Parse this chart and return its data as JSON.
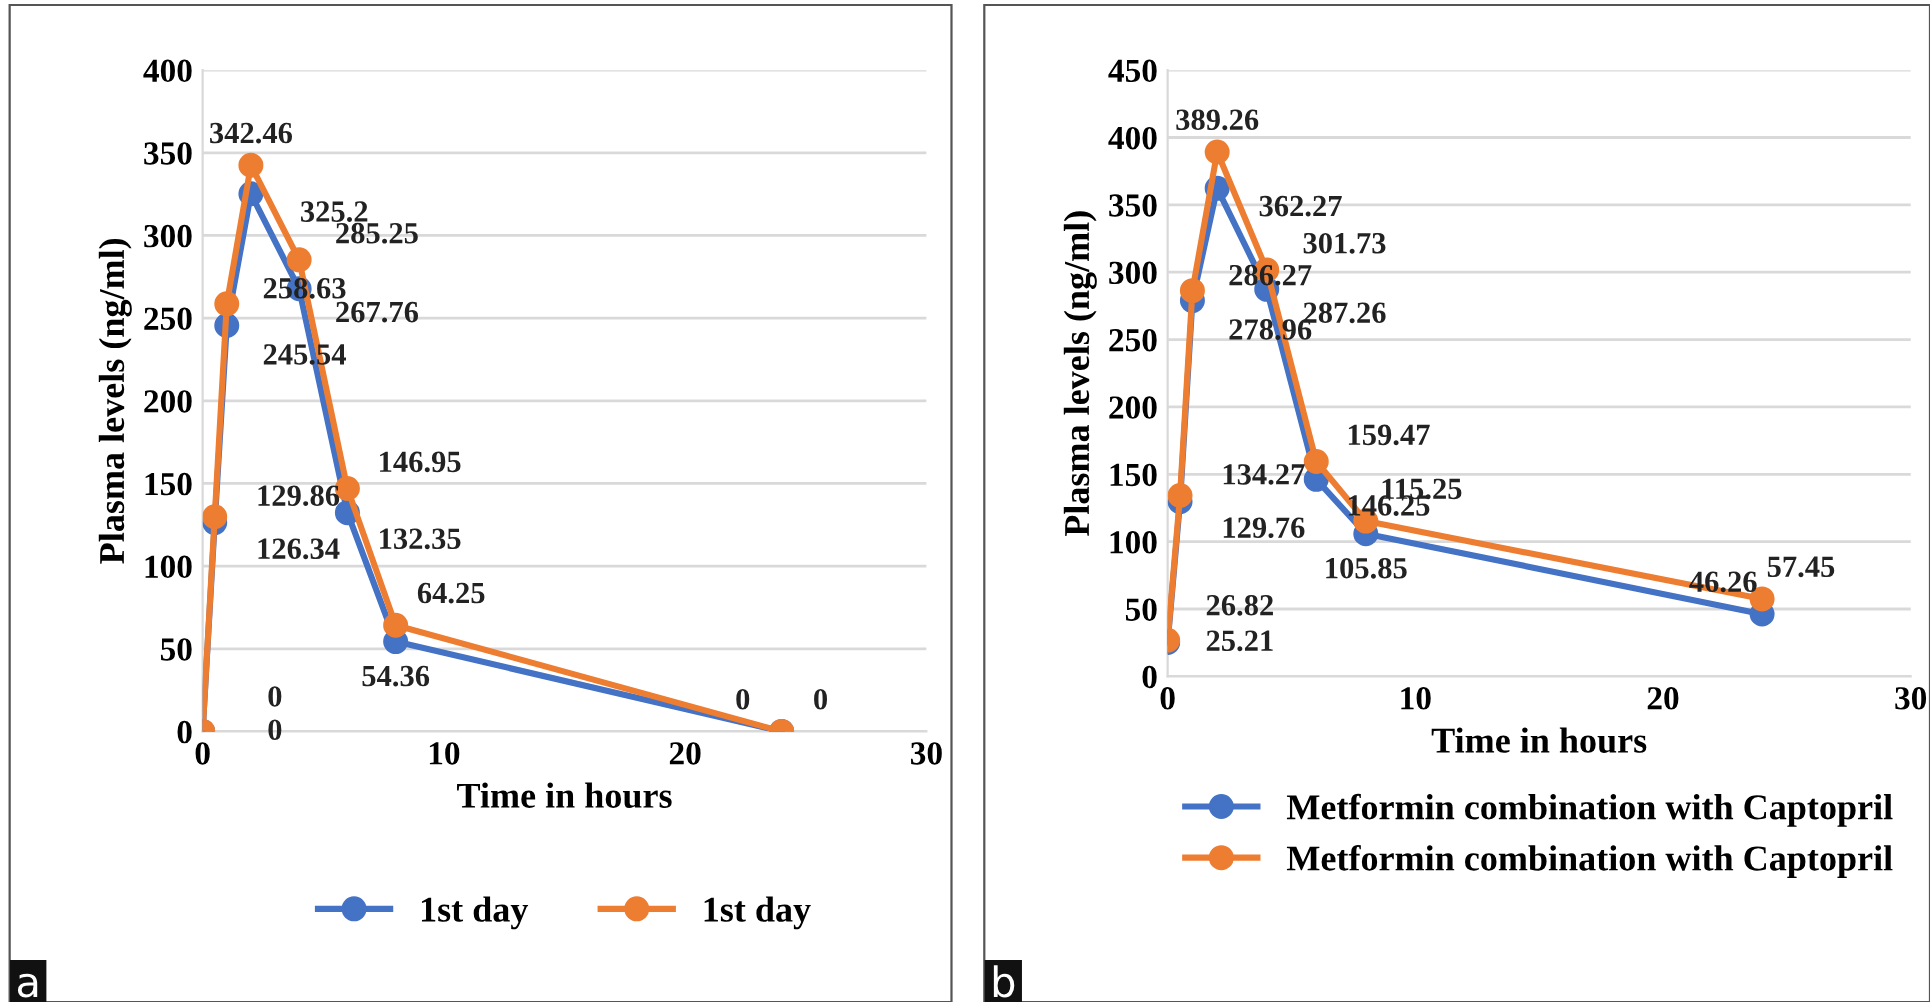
{
  "chart_data": [
    {
      "type": "line",
      "xlabel": "Time in hours",
      "ylabel": "Plasma levels (ng/ml)",
      "x": [
        0,
        0.5,
        1,
        2,
        4,
        6,
        8,
        24
      ],
      "series": [
        {
          "name": "1st day",
          "color": "#4472c4",
          "values": [
            0,
            126.34,
            245.54,
            325.2,
            267.76,
            132.35,
            54.36,
            0
          ]
        },
        {
          "name": "1st day",
          "color": "#ed7d31",
          "values": [
            0,
            129.86,
            258.63,
            342.46,
            285.25,
            146.95,
            64.25,
            0
          ]
        }
      ],
      "xlim": [
        0,
        30
      ],
      "xticks": [
        0,
        10,
        20,
        30
      ],
      "ylim": [
        0,
        400
      ],
      "yticks": [
        0,
        50,
        100,
        150,
        200,
        250,
        300,
        350,
        400
      ],
      "grid": "y",
      "legend": "bottom",
      "marker": "circle",
      "line_style": "solid",
      "data_labels": true,
      "annotations": [
        "a"
      ]
    },
    {
      "type": "line",
      "xlabel": "Time in hours",
      "ylabel": "Plasma levels (ng/ml)",
      "x": [
        0,
        0.5,
        1,
        2,
        4,
        6,
        8,
        24
      ],
      "series": [
        {
          "name": "Metformin combination with Captopril",
          "color": "#4472c4",
          "values": [
            25.21,
            129.76,
            278.96,
            362.27,
            287.26,
            146.25,
            105.85,
            46.26
          ]
        },
        {
          "name": "Metformin combination with Captopril",
          "color": "#ed7d31",
          "values": [
            26.82,
            134.27,
            286.27,
            389.26,
            301.73,
            159.47,
            115.25,
            57.45
          ]
        }
      ],
      "xlim": [
        0,
        30
      ],
      "xticks": [
        0,
        10,
        20,
        30
      ],
      "ylim": [
        0,
        450
      ],
      "yticks": [
        0,
        50,
        100,
        150,
        200,
        250,
        300,
        350,
        400,
        450
      ],
      "grid": "y",
      "legend": "bottom",
      "marker": "circle",
      "line_style": "solid",
      "data_labels": true,
      "annotations": [
        "b"
      ]
    }
  ]
}
